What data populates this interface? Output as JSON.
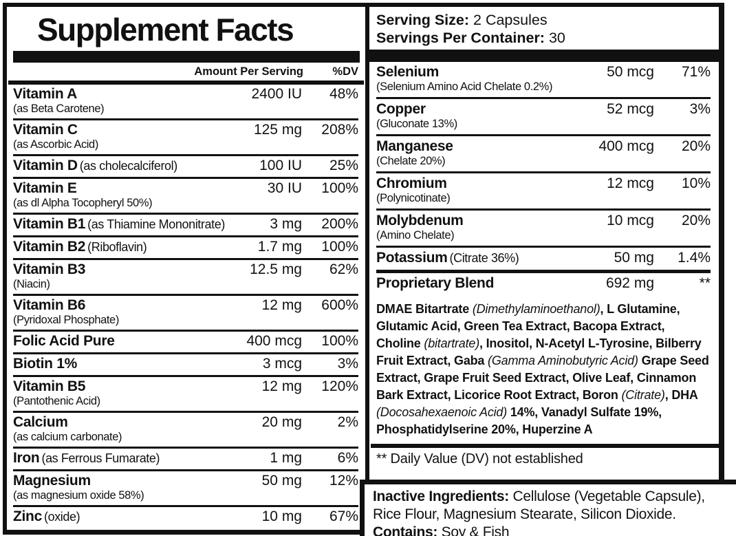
{
  "title": "Supplement Facts",
  "serving": {
    "size_label": "Serving Size:",
    "size_value": "2 Capsules",
    "container_label": "Servings Per Container:",
    "container_value": "30"
  },
  "columns": {
    "amount_header": "Amount Per Serving",
    "dv_header": "%DV"
  },
  "left_rows": [
    {
      "name": "Vitamin A",
      "sub": "(as Beta Carotene)",
      "inline": false,
      "amount": "2400 IU",
      "dv": "48%"
    },
    {
      "name": "Vitamin C",
      "sub": "(as Ascorbic Acid)",
      "inline": false,
      "amount": "125 mg",
      "dv": "208%"
    },
    {
      "name": "Vitamin D",
      "sub": "(as cholecalciferol)",
      "inline": true,
      "amount": "100 IU",
      "dv": "25%"
    },
    {
      "name": "Vitamin E",
      "sub": "(as dl Alpha Tocopheryl 50%)",
      "inline": false,
      "amount": "30 IU",
      "dv": "100%"
    },
    {
      "name": "Vitamin B1",
      "sub": "(as Thiamine Mononitrate)",
      "inline": true,
      "amount": "3 mg",
      "dv": "200%"
    },
    {
      "name": "Vitamin B2",
      "sub": "(Riboflavin)",
      "inline": true,
      "amount": "1.7 mg",
      "dv": "100%"
    },
    {
      "name": "Vitamin B3",
      "sub": "(Niacin)",
      "inline": false,
      "amount": "12.5 mg",
      "dv": "62%"
    },
    {
      "name": "Vitamin B6",
      "sub": "(Pyridoxal Phosphate)",
      "inline": false,
      "amount": "12 mg",
      "dv": "600%"
    },
    {
      "name": "Folic Acid Pure",
      "sub": null,
      "inline": false,
      "amount": "400 mcg",
      "dv": "100%"
    },
    {
      "name": "Biotin 1%",
      "sub": null,
      "inline": false,
      "amount": "3 mcg",
      "dv": "3%"
    },
    {
      "name": "Vitamin B5",
      "sub": "(Pantothenic Acid)",
      "inline": false,
      "amount": "12 mg",
      "dv": "120%"
    },
    {
      "name": "Calcium",
      "sub": "(as calcium carbonate)",
      "inline": false,
      "amount": "20 mg",
      "dv": "2%"
    },
    {
      "name": "Iron",
      "sub": "(as Ferrous Fumarate)",
      "inline": true,
      "amount": "1 mg",
      "dv": "6%"
    },
    {
      "name": "Magnesium",
      "sub": "(as magnesium oxide 58%)",
      "inline": false,
      "amount": "50 mg",
      "dv": "12%"
    },
    {
      "name": "Zinc",
      "sub": "(oxide)",
      "inline": true,
      "amount": "10 mg",
      "dv": "67%"
    }
  ],
  "right_rows": [
    {
      "name": "Selenium",
      "sub": "(Selenium Amino Acid Chelate 0.2%)",
      "inline": false,
      "amount": "50 mcg",
      "dv": "71%"
    },
    {
      "name": "Copper",
      "sub": "(Gluconate 13%)",
      "inline": false,
      "amount": "52 mcg",
      "dv": "3%"
    },
    {
      "name": "Manganese",
      "sub": "(Chelate 20%)",
      "inline": false,
      "amount": "400 mcg",
      "dv": "20%"
    },
    {
      "name": "Chromium",
      "sub": "(Polynicotinate)",
      "inline": false,
      "amount": "12 mcg",
      "dv": "10%"
    },
    {
      "name": "Molybdenum",
      "sub": "(Amino Chelate)",
      "inline": false,
      "amount": "10 mcg",
      "dv": "20%"
    },
    {
      "name": "Potassium",
      "sub": "(Citrate 36%)",
      "inline": true,
      "amount": "50 mg",
      "dv": "1.4%"
    },
    {
      "name": "Proprietary Blend",
      "sub": null,
      "inline": false,
      "amount": "692 mg",
      "dv": "**",
      "thick_top": true
    }
  ],
  "blend_segments": [
    {
      "text": "DMAE Bitartrate ",
      "italic": false
    },
    {
      "text": "(Dimethylaminoethanol)",
      "italic": true
    },
    {
      "text": ", L Glutamine, Glutamic Acid, Green Tea Extract, Bacopa Extract, Choline ",
      "italic": false
    },
    {
      "text": "(bitartrate)",
      "italic": true
    },
    {
      "text": ", Inositol, N-Acetyl L-Tyrosine, Bilberry Fruit Extract, Gaba ",
      "italic": false
    },
    {
      "text": "(Gamma Aminobutyric Acid)",
      "italic": true
    },
    {
      "text": " Grape Seed Extract, Grape Fruit Seed Extract, Olive Leaf, Cinnamon Bark Extract, Licorice Root Extract, Boron ",
      "italic": false
    },
    {
      "text": "(Citrate)",
      "italic": true
    },
    {
      "text": ", DHA ",
      "italic": false
    },
    {
      "text": "(Docosahexaenoic Acid)",
      "italic": true
    },
    {
      "text": " 14%, Vanadyl Sulfate 19%, Phosphatidylserine 20%, Huperzine A",
      "italic": false
    }
  ],
  "footnotes": {
    "daily_value": "** Daily Value (DV) not established"
  },
  "inactive": {
    "label": "Inactive Ingredients:",
    "text": " Cellulose (Vegetable Capsule), Rice Flour, Magnesium Stearate, Silicon Dioxide.",
    "contains_label": "Contains:",
    "contains_text": " Soy & Fish"
  },
  "colors": {
    "ink": "#111111",
    "background": "#ffffff"
  }
}
